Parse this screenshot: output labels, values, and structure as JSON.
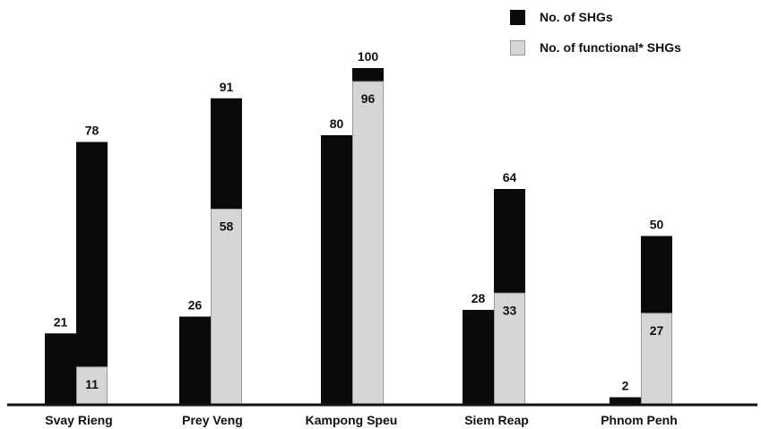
{
  "chart_data": {
    "type": "bar",
    "categories": [
      "Svay Rieng",
      "Prey Veng",
      "Kampong Speu",
      "Siem Reap",
      "Phnom Penh"
    ],
    "series": [
      {
        "name": "No. of SHGs",
        "values": [
          78,
          91,
          100,
          64,
          50
        ],
        "color": "#0a0a0a"
      },
      {
        "name": "No. of functional* SHGs",
        "values": [
          11,
          58,
          96,
          33,
          27
        ],
        "color": "#d6d6d6"
      }
    ],
    "secondary_values": [
      21,
      26,
      80,
      28,
      2
    ],
    "ylim": [
      0,
      100
    ],
    "grid": false,
    "legend_position": "top-right"
  }
}
